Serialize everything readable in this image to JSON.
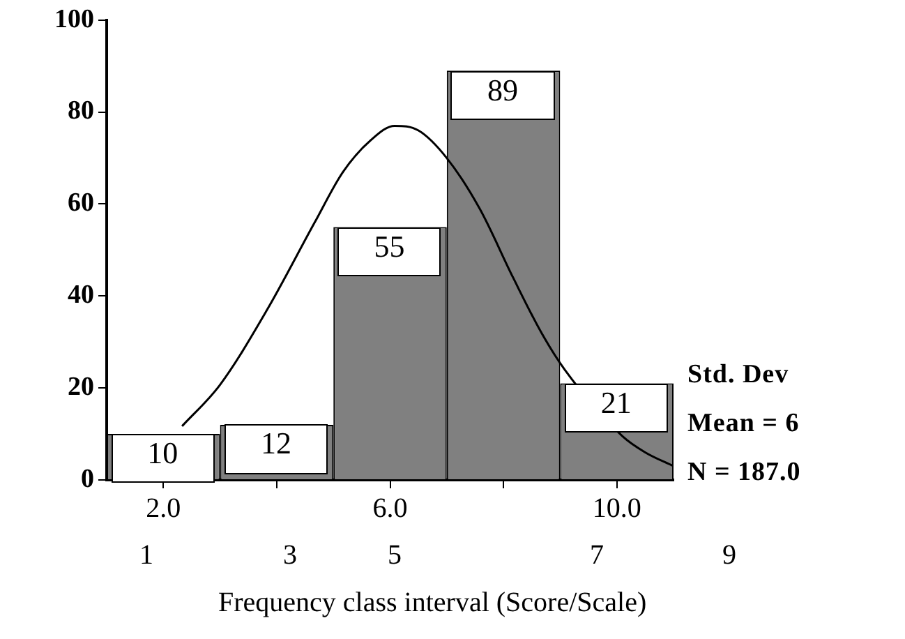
{
  "chart_data": {
    "type": "histogram",
    "xlabel": "Frequency class interval (Score/Scale)",
    "bins": [
      1,
      3,
      5,
      7,
      9,
      11
    ],
    "values": [
      10,
      12,
      55,
      89,
      21
    ],
    "color": "#808080",
    "value_labels": [
      "10",
      "12",
      "55",
      "89",
      "21"
    ],
    "xlim": [
      1,
      11
    ],
    "xticks": [
      {
        "value": 2,
        "label": "2.0"
      },
      {
        "value": 4,
        "label": null
      },
      {
        "value": 6,
        "label": "6.0"
      },
      {
        "value": 8,
        "label": null
      },
      {
        "value": 10,
        "label": "10.0"
      }
    ],
    "ylim": [
      0,
      100
    ],
    "yticks": [
      0,
      20,
      40,
      60,
      80,
      100
    ],
    "grid": false,
    "legend": false,
    "series": [
      {
        "type": "line",
        "color": "#000000",
        "marker": "none",
        "x": [
          2.33,
          3.0,
          3.83,
          4.67,
          5.17,
          5.67,
          6.08,
          6.5,
          7.0,
          7.58,
          8.17,
          8.67,
          9.08,
          10.1,
          10.5,
          11
        ],
        "values": [
          11.7,
          20.7,
          37,
          56,
          67,
          74,
          77,
          76,
          70,
          59,
          44,
          32,
          24,
          9.5,
          6,
          3
        ]
      }
    ],
    "annotations": [
      "Std. Dev",
      "Mean = 6",
      "N = 187.0",
      "1",
      "3",
      "5",
      "7",
      "9"
    ]
  }
}
